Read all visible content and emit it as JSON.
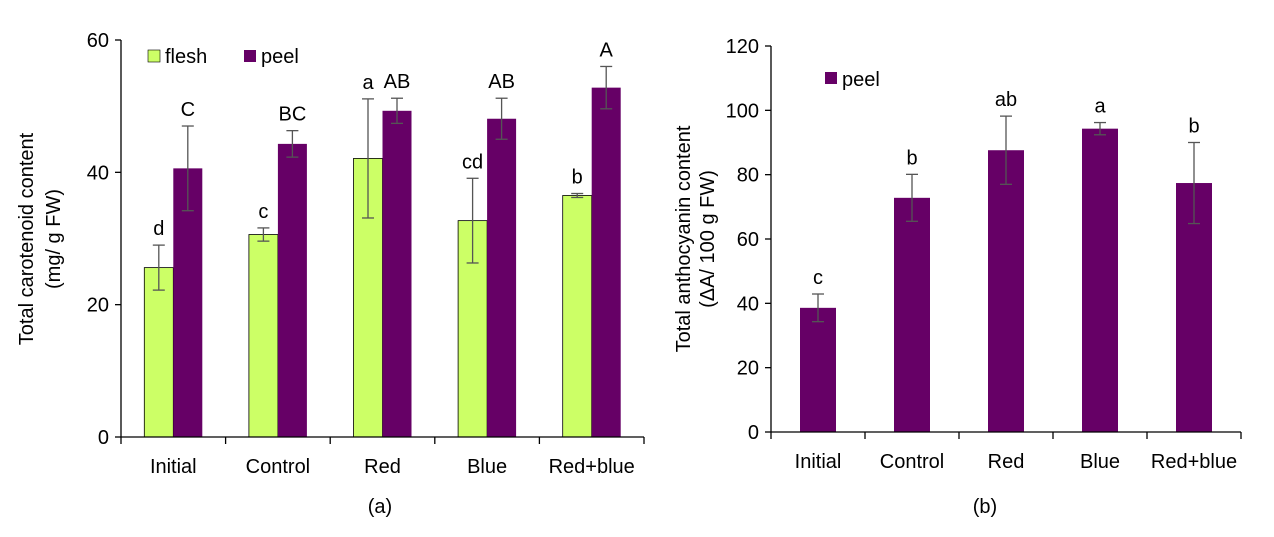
{
  "chart_data": [
    {
      "type": "bar",
      "panel_label": "(a)",
      "ylabel": [
        "Total carotenoid content",
        "(mg/ g FW)"
      ],
      "xlabel": "",
      "ylim": [
        0,
        60
      ],
      "yticks": [
        0,
        20,
        40,
        60
      ],
      "categories": [
        "Initial",
        "Control",
        "Red",
        "Blue",
        "Red+blue"
      ],
      "legend": {
        "placement": "top-left",
        "entries": [
          "flesh",
          "peel"
        ]
      },
      "series": [
        {
          "name": "flesh",
          "color": "#ccff66",
          "values": [
            25.6,
            30.6,
            42.1,
            32.7,
            36.5
          ],
          "errors": [
            3.4,
            1.0,
            9.0,
            6.4,
            0.3
          ],
          "letters": [
            "d",
            "c",
            "a",
            "cd",
            "b"
          ]
        },
        {
          "name": "peel",
          "color": "#660066",
          "values": [
            40.6,
            44.3,
            49.3,
            48.1,
            52.8
          ],
          "errors": [
            6.4,
            2.0,
            1.9,
            3.1,
            3.2
          ],
          "letters": [
            "C",
            "BC",
            "AB",
            "AB",
            "A"
          ]
        }
      ]
    },
    {
      "type": "bar",
      "panel_label": "(b)",
      "ylabel": [
        "Total anthocyanin content",
        "(ΔA/ 100 g FW)"
      ],
      "xlabel": "",
      "ylim": [
        0,
        120
      ],
      "yticks": [
        0,
        20,
        40,
        60,
        80,
        100,
        120
      ],
      "categories": [
        "Initial",
        "Control",
        "Red",
        "Blue",
        "Red+blue"
      ],
      "legend": {
        "placement": "top-left",
        "entries": [
          "peel"
        ]
      },
      "series": [
        {
          "name": "peel",
          "color": "#660066",
          "values": [
            38.6,
            72.8,
            87.6,
            94.3,
            77.4
          ],
          "errors": [
            4.3,
            7.3,
            10.6,
            1.9,
            12.6
          ],
          "letters": [
            "c",
            "b",
            "ab",
            "a",
            "b"
          ]
        }
      ]
    }
  ]
}
